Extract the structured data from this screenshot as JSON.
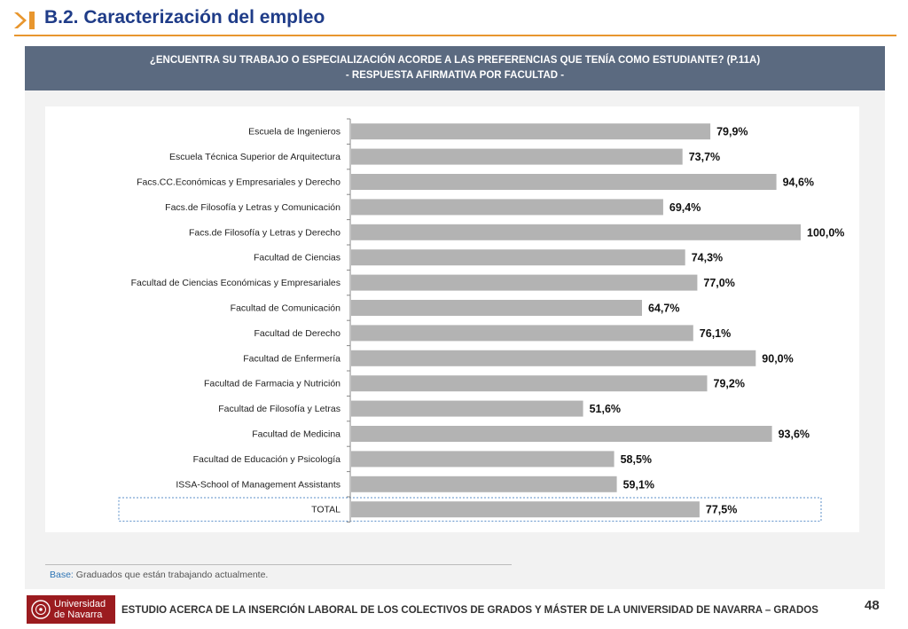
{
  "header": {
    "title": "B.2. Caracterización del empleo"
  },
  "question": {
    "line1": "¿ENCUENTRA SU TRABAJO O ESPECIALIZACIÓN ACORDE A LAS PREFERENCIAS QUE TENÍA COMO ESTUDIANTE? (P.11A)",
    "line2": "- RESPUESTA AFIRMATIVA POR FACULTAD -"
  },
  "chart_data": {
    "type": "bar",
    "orientation": "horizontal",
    "categories": [
      "Escuela de Ingenieros",
      "Escuela Técnica Superior de Arquitectura",
      "Facs.CC.Económicas y Empresariales y Derecho",
      "Facs.de Filosofía y Letras y Comunicación",
      "Facs.de Filosofía y Letras y Derecho",
      "Facultad de Ciencias",
      "Facultad de Ciencias Económicas y Empresariales",
      "Facultad de Comunicación",
      "Facultad de Derecho",
      "Facultad de Enfermería",
      "Facultad de Farmacia y Nutrición",
      "Facultad de Filosofía y Letras",
      "Facultad de Medicina",
      "Facultad de Educación y Psicología",
      "ISSA-School of Management Assistants",
      "TOTAL"
    ],
    "values": [
      79.9,
      73.7,
      94.6,
      69.4,
      100.0,
      74.3,
      77.0,
      64.7,
      76.1,
      90.0,
      79.2,
      51.6,
      93.6,
      58.5,
      59.1,
      77.5
    ],
    "value_labels": [
      "79,9%",
      "73,7%",
      "94,6%",
      "69,4%",
      "100,0%",
      "74,3%",
      "77,0%",
      "64,7%",
      "76,1%",
      "90,0%",
      "79,2%",
      "51,6%",
      "93,6%",
      "58,5%",
      "59,1%",
      "77,5%"
    ],
    "xlim": [
      0,
      100
    ],
    "bar_color": "#b3b3b3",
    "highlight": "TOTAL",
    "grid": false,
    "legend": false
  },
  "note": {
    "label": "Base:",
    "text": " Graduados que están trabajando actualmente."
  },
  "footer": {
    "logo_line1": "Universidad",
    "logo_line2": "de Navarra",
    "text": "ESTUDIO ACERCA DE LA INSERCIÓN LABORAL DE LOS COLECTIVOS DE GRADOS Y MÁSTER DE LA UNIVERSIDAD DE NAVARRA – GRADOS",
    "page": "48"
  },
  "colors": {
    "title": "#1f3c88",
    "accent": "#e8962e",
    "header_band": "#5b6a80",
    "brand": "#9b1b1f"
  }
}
